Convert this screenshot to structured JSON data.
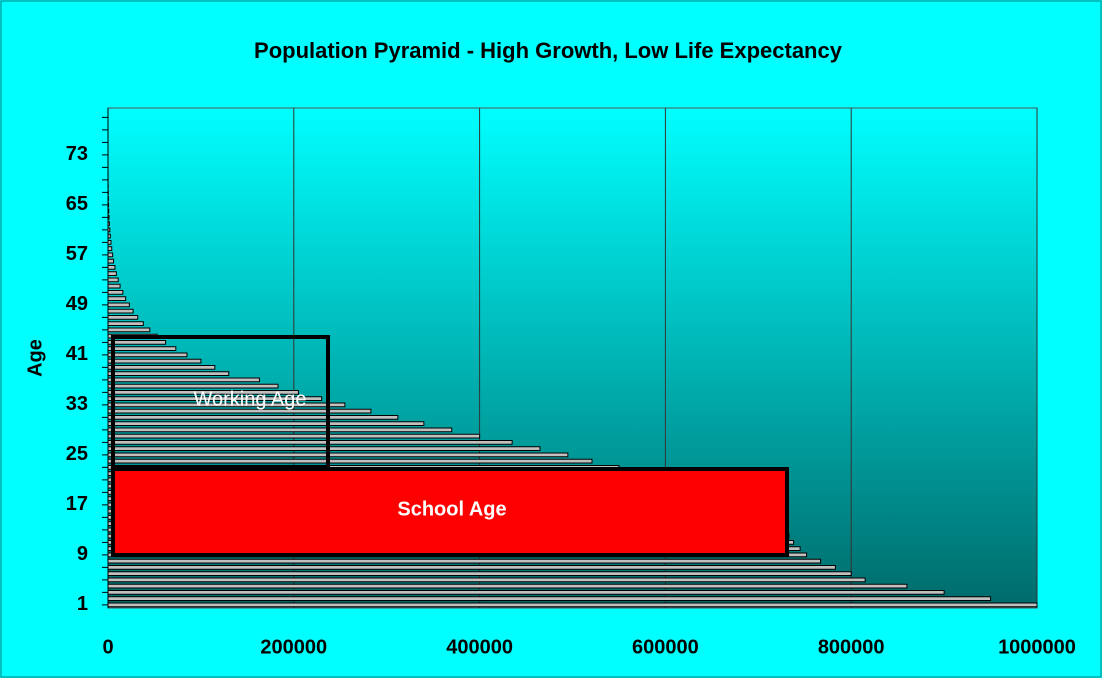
{
  "chart_data": {
    "type": "barh",
    "title": "Population Pyramid - High Growth, Low Life Expectancy",
    "y_label": "Age",
    "categories": [
      "1",
      null,
      null,
      null,
      null,
      null,
      null,
      null,
      "9",
      null,
      null,
      null,
      null,
      null,
      null,
      null,
      "17",
      null,
      null,
      null,
      null,
      null,
      null,
      null,
      "25",
      null,
      null,
      null,
      null,
      null,
      null,
      null,
      "33",
      null,
      null,
      null,
      null,
      null,
      null,
      null,
      "41",
      null,
      null,
      null,
      null,
      null,
      null,
      null,
      "49",
      null,
      null,
      null,
      null,
      null,
      null,
      null,
      "57",
      null,
      null,
      null,
      null,
      null,
      null,
      null,
      "65",
      null,
      null,
      null,
      null,
      null,
      null,
      null,
      "73",
      null,
      null,
      null,
      null,
      null,
      null,
      null
    ],
    "values": [
      1000000,
      950000,
      900000,
      860000,
      815000,
      800000,
      783000,
      767000,
      752000,
      745000,
      738000,
      733000,
      725000,
      710000,
      695000,
      680000,
      665000,
      650000,
      635000,
      615000,
      595000,
      575000,
      550000,
      521000,
      495000,
      465000,
      435000,
      400000,
      370000,
      340000,
      312000,
      283000,
      255000,
      230000,
      205000,
      183000,
      163000,
      130000,
      115000,
      100000,
      85000,
      73000,
      62000,
      53000,
      45000,
      38000,
      32000,
      27000,
      23000,
      19000,
      16000,
      13000,
      11000,
      9000,
      7500,
      6000,
      5000,
      4000,
      3200,
      2500,
      2000,
      1500,
      1100,
      800,
      600,
      400,
      300,
      200,
      100,
      50,
      0,
      0,
      0,
      0,
      0,
      0,
      0,
      0,
      0,
      0
    ],
    "color": "#c0c0c0",
    "xlim": [
      0,
      1000000
    ],
    "xticks": [
      0,
      200000,
      400000,
      600000,
      800000,
      1000000
    ],
    "grid": true,
    "annotations": [
      "Working Age",
      "School Age"
    ]
  }
}
